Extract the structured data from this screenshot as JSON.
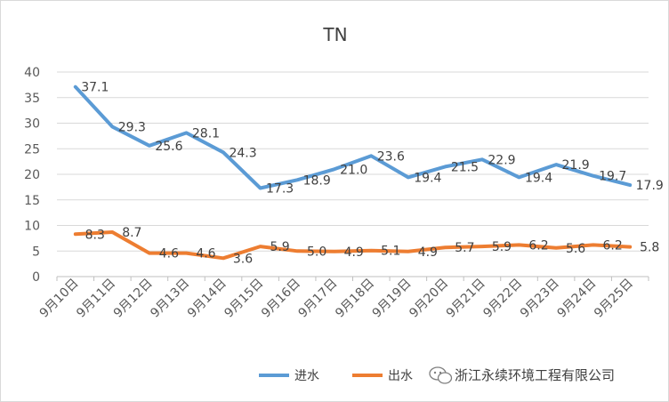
{
  "chart_data": {
    "type": "line",
    "title": "TN",
    "xlabel": "",
    "ylabel": "",
    "categories": [
      "9月10日",
      "9月11日",
      "9月12日",
      "9月13日",
      "9月14日",
      "9月15日",
      "9月16日",
      "9月17日",
      "9月18日",
      "9月19日",
      "9月20日",
      "9月21日",
      "9月22日",
      "9月23日",
      "9月24日",
      "9月25日"
    ],
    "ylim": [
      0,
      40
    ],
    "yticks": [
      0,
      5,
      10,
      15,
      20,
      25,
      30,
      35,
      40
    ],
    "grid": true,
    "legend": "bottom-right",
    "series": [
      {
        "name": "进水",
        "color": "#5B9BD5",
        "values": [
          37.1,
          29.3,
          25.6,
          28.1,
          24.3,
          17.3,
          18.9,
          21.0,
          23.6,
          19.4,
          21.5,
          22.9,
          19.4,
          21.9,
          19.7,
          17.9
        ],
        "labels": [
          "37.1",
          "29.3",
          "25.6",
          "28.1",
          "24.3",
          "17.3",
          "18.9",
          "21.0",
          "23.6",
          "19.4",
          "21.5",
          "22.9",
          "19.4",
          "21.9",
          "19.7",
          "17.9"
        ]
      },
      {
        "name": "出水",
        "color": "#ED7D31",
        "values": [
          8.3,
          8.7,
          4.6,
          4.6,
          3.6,
          5.9,
          5.0,
          4.9,
          5.1,
          4.9,
          5.7,
          5.9,
          6.2,
          5.6,
          6.2,
          5.8
        ],
        "labels": [
          "8.3",
          "8.7",
          "4.6",
          "4.6",
          "3.6",
          "5.9",
          "5.0",
          "4.9",
          "5.1",
          "4.9",
          "5.7",
          "5.9",
          "6.2",
          "5.6",
          "6.2",
          "5.8"
        ]
      }
    ]
  },
  "watermark": {
    "icon": "wechat-icon",
    "text": "浙江永续环境工程有限公司"
  }
}
